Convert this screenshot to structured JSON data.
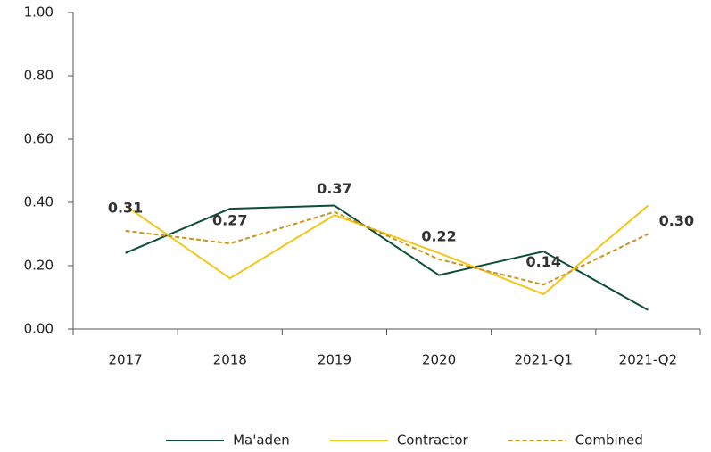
{
  "chart_data": {
    "type": "line",
    "categories": [
      "2017",
      "2018",
      "2019",
      "2020",
      "2021-Q1",
      "2021-Q2"
    ],
    "series": [
      {
        "name": "Ma'aden",
        "color": "#0d4d3a",
        "dashed": false,
        "values": [
          0.24,
          0.38,
          0.39,
          0.17,
          0.245,
          0.06
        ]
      },
      {
        "name": "Contractor",
        "color": "#f5c518",
        "dashed": false,
        "values": [
          0.39,
          0.16,
          0.36,
          0.24,
          0.11,
          0.39
        ]
      },
      {
        "name": "Combined",
        "color": "#c8961e",
        "dashed": true,
        "values": [
          0.31,
          0.27,
          0.37,
          0.22,
          0.14,
          0.3
        ],
        "value_labels": [
          "0.31",
          "0.27",
          "0.37",
          "0.22",
          "0.14",
          "0.30"
        ]
      }
    ],
    "ylim": [
      0,
      1
    ],
    "yticks": [
      {
        "value": 0,
        "label": "0.00"
      },
      {
        "value": 0.2,
        "label": "0.20"
      },
      {
        "value": 0.4,
        "label": "0.40"
      },
      {
        "value": 0.6,
        "label": "0.60"
      },
      {
        "value": 0.8,
        "label": "0.80"
      },
      {
        "value": 1,
        "label": "1.00"
      }
    ],
    "grid": false,
    "legend": "bottom"
  }
}
